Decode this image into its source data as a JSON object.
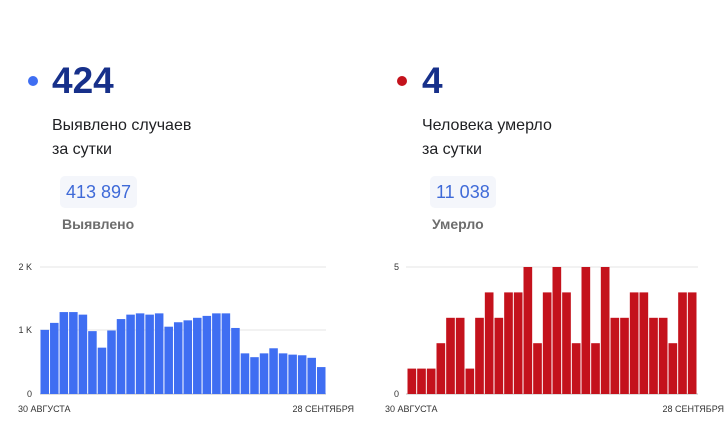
{
  "cases": {
    "value": "424",
    "caption_line1": "Выявлено случаев",
    "caption_line2": "за сутки",
    "total": "413 897",
    "total_label": "Выявлено",
    "color": "#3f6ef2",
    "total_color": "#3f6ad8"
  },
  "deaths": {
    "value": "4",
    "caption_line1": "Человека умерло",
    "caption_line2": "за сутки",
    "total": "11 038",
    "total_label": "Умерло",
    "color": "#c4121c",
    "total_color": "#3f6ad8"
  },
  "chart_data": [
    {
      "type": "bar",
      "series": [
        {
          "values": [
            1010,
            1120,
            1290,
            1290,
            1250,
            990,
            730,
            1000,
            1180,
            1250,
            1270,
            1250,
            1270,
            1060,
            1130,
            1160,
            1200,
            1230,
            1270,
            1270,
            1040,
            640,
            580,
            640,
            720,
            640,
            620,
            610,
            570,
            424
          ]
        }
      ],
      "ylim": [
        0,
        2000
      ],
      "yticks": [
        "0",
        "1 K",
        "2 K"
      ],
      "x_start_label": "30 АВГУСТА",
      "x_end_label": "28 СЕНТЯБРЯ",
      "color": "#3f6ef2",
      "grid": true
    },
    {
      "type": "bar",
      "series": [
        {
          "values": [
            1,
            1,
            1,
            2,
            3,
            3,
            1,
            3,
            4,
            3,
            4,
            4,
            5,
            2,
            4,
            5,
            4,
            2,
            5,
            2,
            5,
            3,
            3,
            4,
            4,
            3,
            3,
            2,
            4,
            4
          ]
        }
      ],
      "ylim": [
        0,
        5
      ],
      "yticks": [
        "0",
        "5"
      ],
      "x_start_label": "30 АВГУСТА",
      "x_end_label": "28 СЕНТЯБРЯ",
      "color": "#c4121c",
      "grid": true
    }
  ]
}
